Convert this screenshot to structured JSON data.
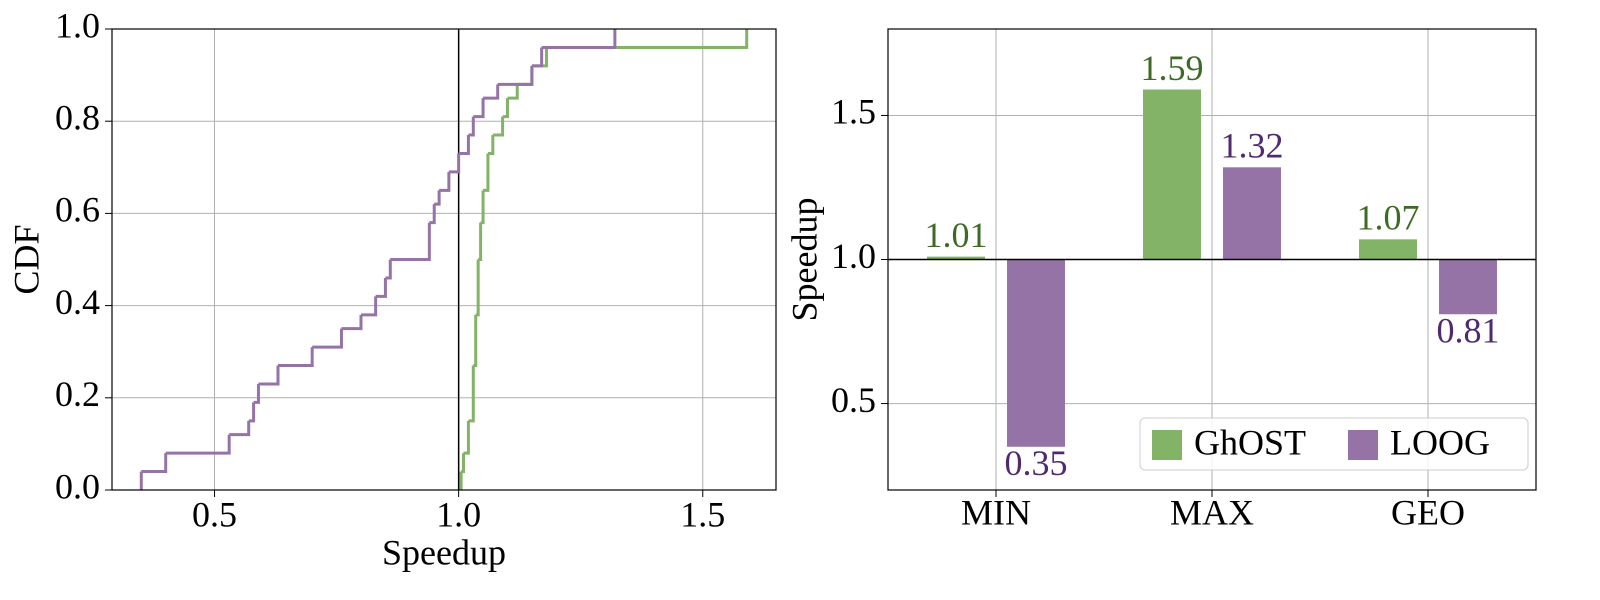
{
  "chart_data": [
    {
      "type": "step",
      "xlabel": "Speedup",
      "ylabel": "CDF",
      "xlim": [
        0.29,
        1.65
      ],
      "ylim": [
        0,
        1
      ],
      "xticks": [
        0.5,
        {
          "value": 1,
          "label": "1.0"
        },
        1.5
      ],
      "yticks": [
        {
          "value": 0,
          "label": "0.0"
        },
        0.2,
        0.4,
        0.6,
        0.8,
        {
          "value": 1,
          "label": "1.0"
        }
      ],
      "grid": true,
      "vline": 1,
      "series": [
        {
          "name": "GhOST",
          "color": "#82b366",
          "x": [
            1.005,
            1.01,
            1.02,
            1.03,
            1.035,
            1.04,
            1.045,
            1.05,
            1.06,
            1.07,
            1.09,
            1.1,
            1.12,
            1.15,
            1.18,
            1.59
          ],
          "values": [
            0.04,
            0.08,
            0.15,
            0.27,
            0.38,
            0.5,
            0.58,
            0.65,
            0.73,
            0.77,
            0.81,
            0.85,
            0.88,
            0.92,
            0.96,
            1.0
          ]
        },
        {
          "name": "LOOG",
          "color": "#9673a6",
          "x": [
            0.35,
            0.4,
            0.53,
            0.57,
            0.58,
            0.59,
            0.63,
            0.7,
            0.76,
            0.8,
            0.83,
            0.85,
            0.86,
            0.94,
            0.95,
            0.96,
            0.98,
            1.0,
            1.02,
            1.03,
            1.05,
            1.08,
            1.15,
            1.17,
            1.32
          ],
          "values": [
            0.04,
            0.08,
            0.12,
            0.15,
            0.19,
            0.23,
            0.27,
            0.31,
            0.35,
            0.38,
            0.42,
            0.46,
            0.5,
            0.58,
            0.62,
            0.65,
            0.69,
            0.73,
            0.77,
            0.81,
            0.85,
            0.88,
            0.92,
            0.96,
            1.0
          ]
        }
      ]
    },
    {
      "type": "bar",
      "ylabel": "Speedup",
      "categories": [
        "MIN",
        "MAX",
        "GEO"
      ],
      "ylim": [
        0.2,
        1.8
      ],
      "yticks": [
        0.5,
        {
          "value": 1,
          "label": "1.0"
        },
        1.5
      ],
      "grid": true,
      "baseline": 1,
      "legend": "lower right",
      "series": [
        {
          "name": "GhOST",
          "color": "#82b366",
          "label_color": "#3d6b26",
          "values": [
            1.01,
            1.59,
            1.07
          ]
        },
        {
          "name": "LOOG",
          "color": "#9673a6",
          "label_color": "#4f2a6e",
          "values": [
            0.35,
            1.32,
            0.81
          ]
        }
      ]
    }
  ]
}
